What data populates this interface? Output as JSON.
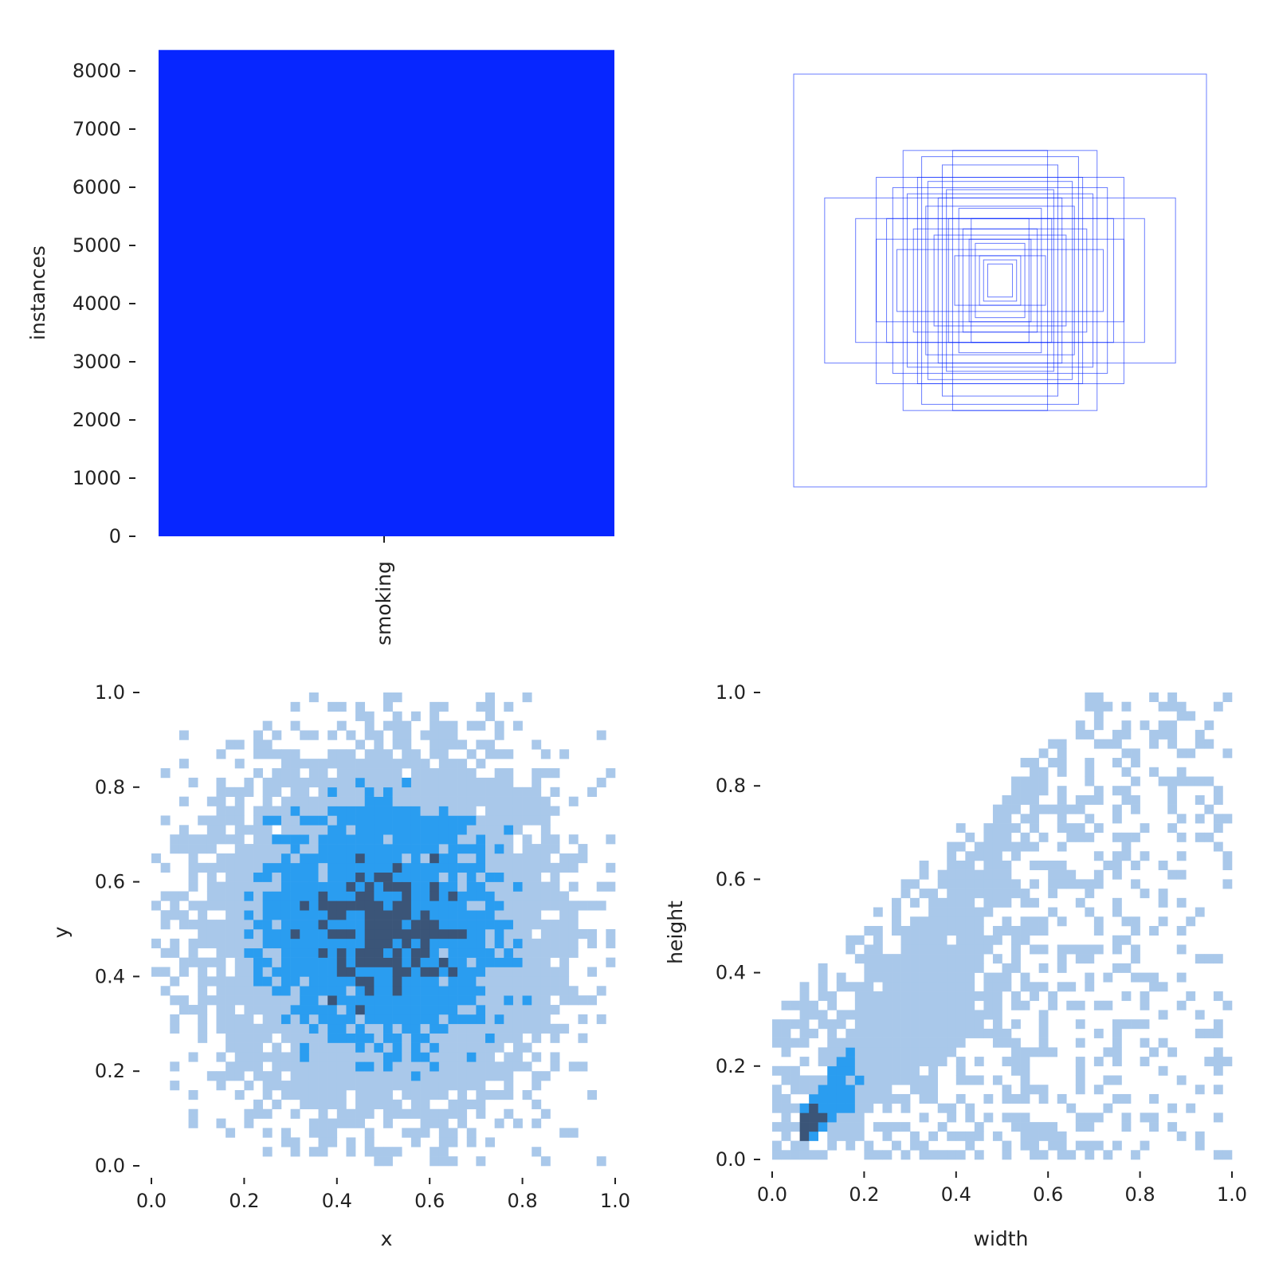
{
  "chart_data": [
    {
      "type": "bar",
      "title": "",
      "categories": [
        "smoking"
      ],
      "values": [
        8360
      ],
      "xlabel": "",
      "ylabel": "instances",
      "ylim": [
        0,
        8360
      ],
      "yticks": [
        "0",
        "1000",
        "2000",
        "3000",
        "4000",
        "5000",
        "6000",
        "7000",
        "8000"
      ],
      "color": "#0726ff"
    },
    {
      "type": "boxes",
      "title": "",
      "description_values": "width,height of sample label boxes, centered",
      "boxes": [
        [
          1.0,
          1.0
        ],
        [
          0.85,
          0.4
        ],
        [
          0.6,
          0.5
        ],
        [
          0.47,
          0.63
        ],
        [
          0.28,
          0.56
        ],
        [
          0.23,
          0.63
        ],
        [
          0.36,
          0.36
        ],
        [
          0.7,
          0.3
        ],
        [
          0.55,
          0.3
        ],
        [
          0.52,
          0.45
        ],
        [
          0.45,
          0.42
        ],
        [
          0.4,
          0.5
        ],
        [
          0.35,
          0.48
        ],
        [
          0.3,
          0.4
        ],
        [
          0.5,
          0.15
        ],
        [
          0.25,
          0.3
        ],
        [
          0.2,
          0.35
        ],
        [
          0.18,
          0.25
        ],
        [
          0.15,
          0.2
        ],
        [
          0.12,
          0.18
        ],
        [
          0.1,
          0.12
        ],
        [
          0.08,
          0.1
        ],
        [
          0.06,
          0.08
        ],
        [
          0.42,
          0.25
        ],
        [
          0.32,
          0.22
        ],
        [
          0.22,
          0.12
        ],
        [
          0.6,
          0.2
        ],
        [
          0.38,
          0.6
        ],
        [
          0.26,
          0.44
        ],
        [
          0.14,
          0.3
        ],
        [
          0.05,
          0.05
        ]
      ],
      "color": "#0726ff"
    },
    {
      "type": "heatmap",
      "xlabel": "x",
      "ylabel": "y",
      "xlim": [
        0,
        1
      ],
      "ylim": [
        0,
        1
      ],
      "xticks": [
        "0.0",
        "0.2",
        "0.4",
        "0.6",
        "0.8",
        "1.0"
      ],
      "yticks": [
        "0.0",
        "0.2",
        "0.4",
        "0.6",
        "0.8",
        "1.0"
      ],
      "bins": 50,
      "distribution": {
        "mean_x": 0.5,
        "mean_y": 0.5,
        "std_x": 0.17,
        "std_y": 0.17,
        "n": 8360
      }
    },
    {
      "type": "heatmap",
      "xlabel": "width",
      "ylabel": "height",
      "xlim": [
        0,
        1
      ],
      "ylim": [
        0,
        1
      ],
      "xticks": [
        "0.0",
        "0.2",
        "0.4",
        "0.6",
        "0.8",
        "1.0"
      ],
      "yticks": [
        "0.0",
        "0.2",
        "0.4",
        "0.6",
        "0.8",
        "1.0"
      ],
      "bins": 50,
      "distribution": {
        "mode_width": 0.06,
        "mode_height": 0.06,
        "n": 8360
      }
    }
  ],
  "colors": {
    "low": "#a9c8ea",
    "mid": "#2a9df0",
    "high": "#3b5578"
  }
}
